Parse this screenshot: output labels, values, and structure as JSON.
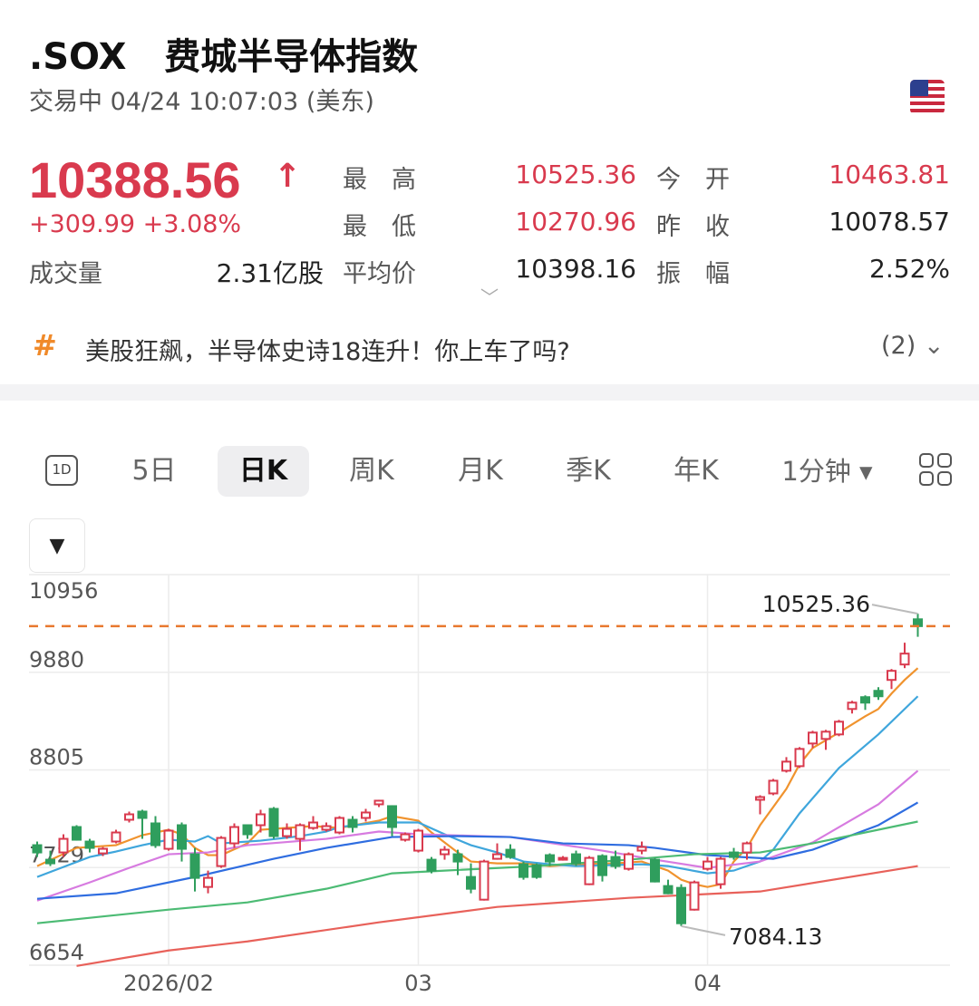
{
  "header": {
    "title": ".SOX   费城半导体指数",
    "status": "交易中 04/24 10:07:03 (美东)",
    "flag_icon": "us-flag-icon"
  },
  "quote": {
    "price": "10388.56",
    "direction": "up-arrow",
    "change": "+309.99 +3.08%",
    "stats": [
      {
        "label": "最　高",
        "value": "10525.36",
        "color": "red"
      },
      {
        "label": "今　开",
        "value": "10463.81",
        "color": "red"
      },
      {
        "label": "最　低",
        "value": "10270.96",
        "color": "red"
      },
      {
        "label": "昨　收",
        "value": "10078.57",
        "color": "black"
      },
      {
        "label": "平均价",
        "value": "10398.16",
        "color": "black"
      },
      {
        "label": "振　幅",
        "value": "2.52%",
        "color": "black"
      }
    ],
    "volume_label": "成交量",
    "volume_value": "2.31亿股"
  },
  "topic": {
    "icon": "hash-icon",
    "text": "美股狂飙，半导体史诗18连升！你上车了吗?",
    "count": "(2)"
  },
  "tabs": {
    "icon_1d": "1D",
    "items": [
      "5日",
      "日K",
      "周K",
      "月K",
      "季K",
      "年K",
      "1分钟 ▾"
    ],
    "selected": "日K"
  },
  "colors": {
    "up": "#d93a4e",
    "down": "#2f9e5d",
    "last_price_line": "#e8782e"
  },
  "chart_data": {
    "type": "candlestick",
    "ylim": [
      6654,
      10956
    ],
    "yticks": [
      "10956",
      "9880",
      "8805",
      "7729",
      "6654"
    ],
    "xticks": [
      {
        "index": 10,
        "label": "2026/02"
      },
      {
        "index": 29,
        "label": "03"
      },
      {
        "index": 51,
        "label": "04"
      }
    ],
    "last_price": 10388.56,
    "annotations": {
      "high": "10525.36",
      "low": "7084.13"
    },
    "grid": true,
    "candles": [
      [
        7976,
        8016,
        7846,
        7896
      ],
      [
        7816,
        7916,
        7746,
        7776
      ],
      [
        7896,
        8096,
        7846,
        8046
      ],
      [
        8176,
        8196,
        8026,
        8036
      ],
      [
        8016,
        8046,
        7896,
        7946
      ],
      [
        7886,
        7956,
        7856,
        7936
      ],
      [
        8016,
        8146,
        7996,
        8116
      ],
      [
        8256,
        8346,
        8226,
        8316
      ],
      [
        8346,
        8366,
        8046,
        8276
      ],
      [
        8216,
        8296,
        7946,
        7976
      ],
      [
        7936,
        8156,
        7916,
        8136
      ],
      [
        8196,
        8226,
        7796,
        7936
      ],
      [
        7876,
        7946,
        7466,
        7616
      ],
      [
        7516,
        7696,
        7446,
        7616
      ],
      [
        7746,
        8076,
        7726,
        8056
      ],
      [
        7996,
        8216,
        7946,
        8176
      ],
      [
        8196,
        8196,
        8046,
        8096
      ],
      [
        8196,
        8366,
        8116,
        8316
      ],
      [
        8376,
        8396,
        8046,
        8076
      ],
      [
        8076,
        8216,
        8046,
        8156
      ],
      [
        8046,
        8216,
        7916,
        8196
      ],
      [
        8166,
        8296,
        8146,
        8226
      ],
      [
        8146,
        8226,
        8126,
        8186
      ],
      [
        8116,
        8296,
        8096,
        8276
      ],
      [
        8256,
        8296,
        8116,
        8176
      ],
      [
        8276,
        8376,
        8236,
        8336
      ],
      [
        8426,
        8476,
        8396,
        8466
      ],
      [
        8406,
        8416,
        8076,
        8176
      ],
      [
        8036,
        8116,
        8016,
        8096
      ],
      [
        7916,
        8156,
        7896,
        8136
      ],
      [
        7816,
        7846,
        7666,
        7696
      ],
      [
        7876,
        7966,
        7816,
        7926
      ],
      [
        7876,
        7926,
        7646,
        7796
      ],
      [
        7626,
        7776,
        7446,
        7496
      ],
      [
        7376,
        7816,
        7366,
        7796
      ],
      [
        7826,
        7996,
        7816,
        7876
      ],
      [
        7926,
        7986,
        7826,
        7846
      ],
      [
        7766,
        7796,
        7596,
        7626
      ],
      [
        7756,
        7776,
        7606,
        7626
      ],
      [
        7866,
        7886,
        7746,
        7796
      ],
      [
        7816,
        7856,
        7806,
        7836
      ],
      [
        7876,
        7916,
        7746,
        7776
      ],
      [
        7546,
        7856,
        7536,
        7836
      ],
      [
        7856,
        7876,
        7576,
        7646
      ],
      [
        7846,
        7916,
        7716,
        7746
      ],
      [
        7716,
        7896,
        7696,
        7876
      ],
      [
        7916,
        8016,
        7876,
        7956
      ],
      [
        7816,
        7836,
        7566,
        7576
      ],
      [
        7526,
        7596,
        7436,
        7446
      ],
      [
        7506,
        7546,
        7084.13,
        7116
      ],
      [
        7266,
        7586,
        7256,
        7566
      ],
      [
        7716,
        7846,
        7696,
        7796
      ],
      [
        7546,
        7846,
        7496,
        7826
      ],
      [
        7896,
        7946,
        7816,
        7846
      ],
      [
        7896,
        8016,
        7816,
        7996
      ],
      [
        8476,
        8526,
        8316,
        8506
      ],
      [
        8546,
        8706,
        8526,
        8686
      ],
      [
        8796,
        8946,
        8776,
        8896
      ],
      [
        8846,
        9056,
        8826,
        9036
      ],
      [
        9096,
        9236,
        9046,
        9216
      ],
      [
        9146,
        9246,
        9026,
        9226
      ],
      [
        9196,
        9356,
        9176,
        9336
      ],
      [
        9476,
        9566,
        9426,
        9546
      ],
      [
        9606,
        9626,
        9466,
        9546
      ],
      [
        9676,
        9716,
        9576,
        9616
      ],
      [
        9796,
        9916,
        9696,
        9896
      ],
      [
        9966,
        10206,
        9926,
        10086
      ],
      [
        10463.81,
        10525.36,
        10270.96,
        10388.56
      ]
    ],
    "moving_averages": [
      {
        "color": "#f0932e",
        "points": [
          [
            0,
            7746
          ],
          [
            3,
            7946
          ],
          [
            6,
            7976
          ],
          [
            8,
            8086
          ],
          [
            10,
            8146
          ],
          [
            11,
            8096
          ],
          [
            12,
            7946
          ],
          [
            13,
            7866
          ],
          [
            14,
            7866
          ],
          [
            16,
            7996
          ],
          [
            17,
            8146
          ],
          [
            19,
            8166
          ],
          [
            21,
            8186
          ],
          [
            23,
            8166
          ],
          [
            26,
            8246
          ],
          [
            27,
            8296
          ],
          [
            29,
            8246
          ],
          [
            30,
            8116
          ],
          [
            32,
            7896
          ],
          [
            33,
            7796
          ],
          [
            35,
            7776
          ],
          [
            37,
            7776
          ],
          [
            39,
            7746
          ],
          [
            41,
            7766
          ],
          [
            44,
            7776
          ],
          [
            46,
            7796
          ],
          [
            48,
            7696
          ],
          [
            49,
            7596
          ],
          [
            50,
            7546
          ],
          [
            51,
            7516
          ],
          [
            52,
            7546
          ],
          [
            53,
            7796
          ],
          [
            54,
            7946
          ],
          [
            55,
            8196
          ],
          [
            57,
            8596
          ],
          [
            58,
            8866
          ],
          [
            59,
            9046
          ],
          [
            61,
            9216
          ],
          [
            63,
            9396
          ],
          [
            64,
            9476
          ],
          [
            65,
            9646
          ],
          [
            66,
            9796
          ],
          [
            67,
            9926
          ]
        ]
      },
      {
        "color": "#3fa6dc",
        "points": [
          [
            0,
            7626
          ],
          [
            4,
            7846
          ],
          [
            6,
            7906
          ],
          [
            8,
            7976
          ],
          [
            10,
            8036
          ],
          [
            12,
            8016
          ],
          [
            13,
            8076
          ],
          [
            14,
            7996
          ],
          [
            17,
            8026
          ],
          [
            20,
            8076
          ],
          [
            22,
            8126
          ],
          [
            23,
            8176
          ],
          [
            26,
            8226
          ],
          [
            29,
            8226
          ],
          [
            31,
            8096
          ],
          [
            33,
            7976
          ],
          [
            35,
            7896
          ],
          [
            37,
            7796
          ],
          [
            39,
            7766
          ],
          [
            41,
            7746
          ],
          [
            46,
            7766
          ],
          [
            48,
            7746
          ],
          [
            51,
            7666
          ],
          [
            53,
            7696
          ],
          [
            55,
            7796
          ],
          [
            56,
            7926
          ],
          [
            58,
            8326
          ],
          [
            61,
            8826
          ],
          [
            64,
            9196
          ],
          [
            67,
            9616
          ]
        ]
      },
      {
        "color": "#d77be0",
        "points": [
          [
            0,
            7366
          ],
          [
            4,
            7566
          ],
          [
            7,
            7726
          ],
          [
            10,
            7876
          ],
          [
            13,
            7896
          ],
          [
            16,
            7976
          ],
          [
            22,
            8046
          ],
          [
            26,
            8126
          ],
          [
            29,
            8096
          ],
          [
            36,
            8066
          ],
          [
            43,
            7916
          ],
          [
            47,
            7816
          ],
          [
            51,
            7726
          ],
          [
            55,
            7796
          ],
          [
            59,
            8006
          ],
          [
            64,
            8426
          ],
          [
            67,
            8796
          ]
        ]
      },
      {
        "color": "#2f6de0",
        "points": [
          [
            0,
            7386
          ],
          [
            6,
            7446
          ],
          [
            12,
            7626
          ],
          [
            18,
            7826
          ],
          [
            22,
            7946
          ],
          [
            27,
            8066
          ],
          [
            32,
            8076
          ],
          [
            36,
            8066
          ],
          [
            40,
            7996
          ],
          [
            45,
            7976
          ],
          [
            47,
            7946
          ],
          [
            51,
            7866
          ],
          [
            56,
            7826
          ],
          [
            59,
            7926
          ],
          [
            64,
            8196
          ],
          [
            67,
            8446
          ]
        ]
      },
      {
        "color": "#4cbb74",
        "points": [
          [
            0,
            7116
          ],
          [
            10,
            7266
          ],
          [
            16,
            7346
          ],
          [
            22,
            7496
          ],
          [
            27,
            7666
          ],
          [
            31,
            7696
          ],
          [
            38,
            7746
          ],
          [
            45,
            7816
          ],
          [
            50,
            7876
          ],
          [
            55,
            7896
          ],
          [
            59,
            7996
          ],
          [
            67,
            8236
          ]
        ]
      },
      {
        "color": "#e8615a",
        "points": [
          [
            3,
            6646
          ],
          [
            10,
            6816
          ],
          [
            16,
            6916
          ],
          [
            26,
            7126
          ],
          [
            35,
            7296
          ],
          [
            45,
            7396
          ],
          [
            55,
            7466
          ],
          [
            67,
            7746
          ]
        ]
      }
    ]
  }
}
